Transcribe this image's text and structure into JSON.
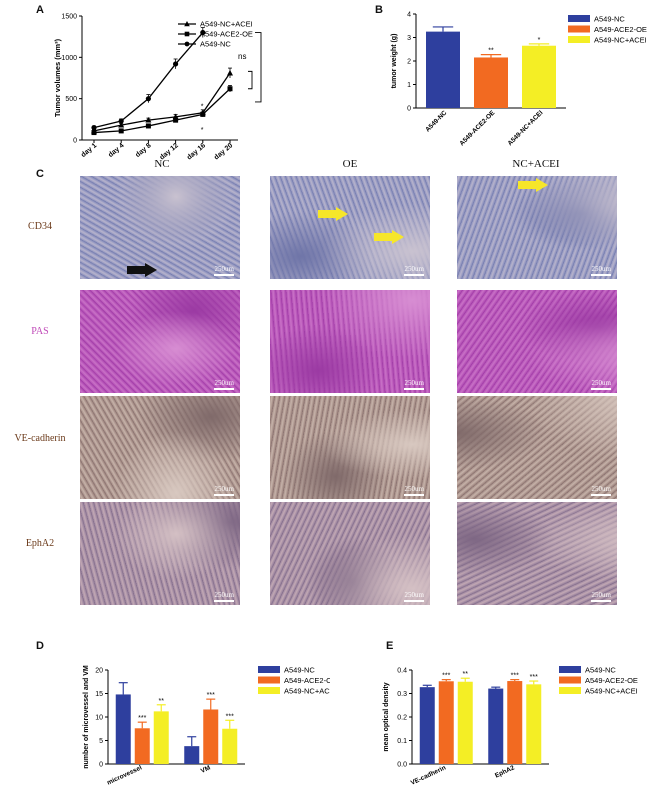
{
  "panels": {
    "A": "A",
    "B": "B",
    "C": "C",
    "D": "D",
    "E": "E"
  },
  "colors": {
    "nc": "#2e3f9e",
    "oe": "#f26a21",
    "acei": "#f4ee25",
    "ve_stain": "#a88e86",
    "cd34_stain": "#9a9fc4",
    "pas_stain": "#b552b6",
    "eph_stain": "#a48f9c"
  },
  "chart_data": [
    {
      "id": "A",
      "type": "line",
      "title": "",
      "xlabel": "",
      "ylabel": "Tumor volumes (mm³)",
      "categories": [
        "day 1",
        "day 4",
        "day 8",
        "day 12",
        "day 16",
        "day 20"
      ],
      "ylim": [
        0,
        1500
      ],
      "yticks": [
        0,
        500,
        1000,
        1500
      ],
      "legend": "top-right",
      "series": [
        {
          "name": "A549-NC+ACEI",
          "marker": "triangle",
          "values": [
            110,
            180,
            240,
            280,
            330,
            810
          ],
          "errors": [
            15,
            20,
            25,
            30,
            35,
            60
          ]
        },
        {
          "name": "A549-ACE2-OE",
          "marker": "square",
          "values": [
            90,
            110,
            170,
            240,
            310,
            620
          ],
          "errors": [
            15,
            15,
            20,
            25,
            30,
            40
          ]
        },
        {
          "name": "A549-NC",
          "marker": "circle",
          "values": [
            150,
            230,
            500,
            920,
            1300,
            null
          ],
          "errors": [
            20,
            25,
            50,
            60,
            60,
            0
          ]
        }
      ],
      "annotations": {
        "star_a": "*",
        "star_b": "*",
        "ns": "ns"
      }
    },
    {
      "id": "B",
      "type": "bar",
      "title": "",
      "xlabel": "",
      "ylabel": "tumor weight (g)",
      "categories": [
        "A549-NC",
        "A549-ACE2-OE",
        "A549-NC+ACEI"
      ],
      "values": [
        3.25,
        2.15,
        2.65
      ],
      "errors": [
        0.2,
        0.12,
        0.08
      ],
      "sig": [
        "",
        "**",
        "*"
      ],
      "ylim": [
        0,
        4
      ],
      "yticks": [
        0,
        1,
        2,
        3,
        4
      ],
      "legend": "right",
      "legend_entries": [
        "A549-NC",
        "A549-ACE2-OE",
        "A549-NC+ACEI"
      ]
    },
    {
      "id": "D",
      "type": "bar",
      "title": "",
      "xlabel": "",
      "ylabel": "number of microvessel and VM",
      "categories": [
        "microvessel",
        "VM"
      ],
      "series": [
        {
          "name": "A549-NC",
          "values": [
            14.8,
            3.8
          ],
          "errors": [
            2.5,
            2.0
          ]
        },
        {
          "name": "A549-ACE2-OE",
          "values": [
            7.6,
            11.6
          ],
          "errors": [
            1.3,
            2.2
          ]
        },
        {
          "name": "A549-NC+ACEI",
          "values": [
            11.2,
            7.5
          ],
          "errors": [
            1.4,
            1.8
          ]
        }
      ],
      "sig": [
        [
          "",
          "***",
          "**"
        ],
        [
          "",
          "***",
          "***"
        ]
      ],
      "ylim": [
        0,
        20
      ],
      "yticks": [
        0,
        5,
        10,
        15,
        20
      ],
      "legend": "right"
    },
    {
      "id": "E",
      "type": "bar",
      "title": "",
      "xlabel": "",
      "ylabel": "mean optical density",
      "categories": [
        "VE-cadherin",
        "EphA2"
      ],
      "series": [
        {
          "name": "A549-NC",
          "values": [
            0.327,
            0.321
          ],
          "errors": [
            0.008,
            0.006
          ]
        },
        {
          "name": "A549-ACE2-OE",
          "values": [
            0.352,
            0.353
          ],
          "errors": [
            0.007,
            0.006
          ]
        },
        {
          "name": "A549-NC+ACEI",
          "values": [
            0.35,
            0.339
          ],
          "errors": [
            0.015,
            0.014
          ]
        }
      ],
      "sig": [
        [
          "",
          "***",
          "**"
        ],
        [
          "",
          "***",
          "***"
        ]
      ],
      "ylim": [
        0,
        0.4
      ],
      "yticks": [
        0.0,
        0.1,
        0.2,
        0.3,
        0.4
      ],
      "legend": "right"
    }
  ],
  "micrographs": {
    "columns": [
      "NC",
      "OE",
      "NC+ACEI"
    ],
    "rows": [
      {
        "label": "CD34",
        "label_color": "#6b3a1a",
        "stain": "cd34"
      },
      {
        "label": "PAS",
        "label_color": "#c04ab8",
        "stain": "pas"
      },
      {
        "label": "VE-cadherin",
        "label_color": "#6b3a1a",
        "stain": "ve"
      },
      {
        "label": "EphA2",
        "label_color": "#6b3a1a",
        "stain": "eph"
      }
    ],
    "scale_bar": "250um"
  }
}
